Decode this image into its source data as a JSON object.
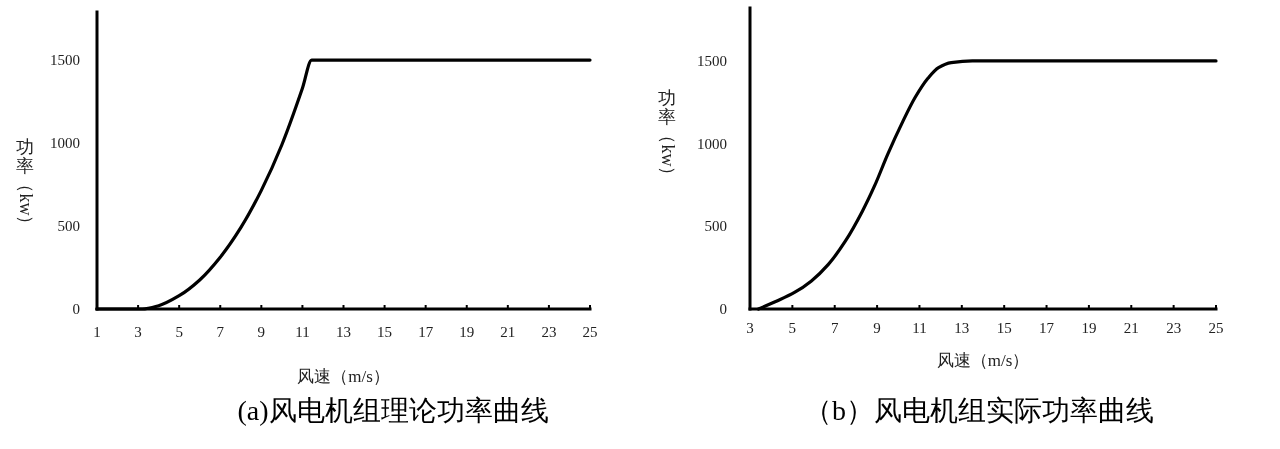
{
  "chart_data": [
    {
      "type": "line",
      "title": "(a)风电机组理论功率曲线",
      "xlabel": "风速（m/s）",
      "ylabel": "功率（kw）",
      "series": [
        {
          "color": "#000000",
          "x": [
            1,
            3.2,
            4,
            5,
            6,
            7,
            8,
            9,
            10,
            11,
            11.45,
            25
          ],
          "values": [
            0,
            0,
            20,
            80,
            175,
            312,
            490,
            715,
            990,
            1330,
            1500,
            1500
          ]
        }
      ],
      "xlim": [
        1,
        25
      ],
      "ylim": [
        0,
        1790
      ],
      "xticks": [
        1,
        3,
        5,
        7,
        9,
        11,
        13,
        15,
        17,
        19,
        21,
        23,
        25
      ],
      "yticks": [
        0,
        500,
        1000,
        1500
      ]
    },
    {
      "type": "line",
      "title": "（b）风电机组实际功率曲线",
      "xlabel": "风速（m/s）",
      "ylabel": "功率（kw）",
      "series": [
        {
          "color": "#000000",
          "x": [
            3.4,
            4.3,
            5.1,
            5.9,
            6.7,
            7.5,
            8.3,
            8.9,
            9.5,
            10.2,
            10.8,
            11.4,
            11.9,
            12.5,
            13.5,
            25
          ],
          "values": [
            0,
            50,
            100,
            170,
            270,
            410,
            590,
            750,
            935,
            1130,
            1280,
            1395,
            1460,
            1490,
            1500,
            1500
          ]
        }
      ],
      "xlim": [
        3,
        25
      ],
      "ylim": [
        0,
        1820
      ],
      "xticks": [
        3,
        5,
        7,
        9,
        11,
        13,
        15,
        17,
        19,
        21,
        23,
        25
      ],
      "yticks": [
        0,
        500,
        1000,
        1500
      ]
    }
  ]
}
